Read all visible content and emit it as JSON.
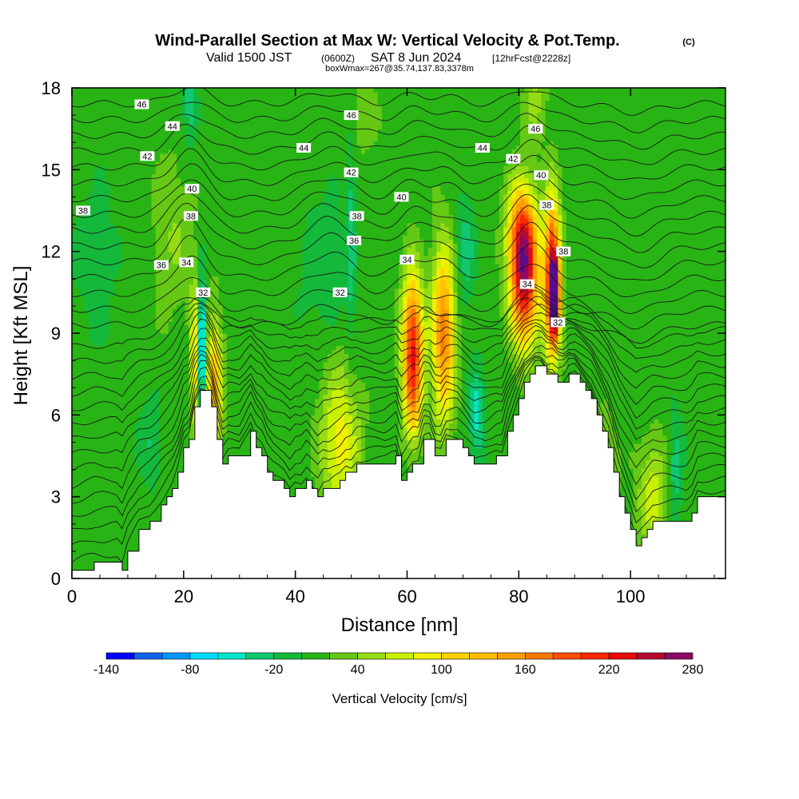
{
  "chart_data": {
    "type": "heatmap",
    "title": {
      "main": "Wind-Parallel Section at Max W: Vertical Velocity & Pot.Temp.",
      "copyright": "(C)",
      "valid_prefix": "Valid 1500 JST",
      "valid_utc": "(0600Z)",
      "valid_date": "SAT 8 Jun 2024",
      "forecast": "[12hrFcst@2228z]",
      "box": "boxWmax=267@35.74,137.83,3378m"
    },
    "xlabel": "Distance [nm]",
    "ylabel": "Height [Kft MSL]",
    "xlim": [
      0,
      117
    ],
    "ylim": [
      0,
      18
    ],
    "x_ticks": [
      "0",
      "20",
      "40",
      "60",
      "80",
      "100"
    ],
    "x_tick_values": [
      0,
      20,
      40,
      60,
      80,
      100
    ],
    "y_ticks": [
      "0",
      "3",
      "6",
      "9",
      "12",
      "15",
      "18"
    ],
    "y_tick_values": [
      0,
      3,
      6,
      9,
      12,
      15,
      18
    ],
    "colorbar": {
      "title": "Vertical Velocity [cm/s]",
      "levels": [
        -140,
        -120,
        -100,
        -80,
        -60,
        -40,
        -20,
        0,
        20,
        40,
        60,
        80,
        100,
        120,
        140,
        160,
        180,
        200,
        220,
        240,
        260,
        280
      ],
      "tick_labels": [
        "-140",
        "-80",
        "-20",
        "40",
        "100",
        "160",
        "220",
        "280"
      ],
      "tick_values": [
        -140,
        -80,
        -20,
        40,
        100,
        160,
        220,
        280
      ],
      "colors": [
        "#0000ff",
        "#1464f0",
        "#0096ff",
        "#00dcff",
        "#00e6c8",
        "#10c873",
        "#14b93c",
        "#28b414",
        "#64c814",
        "#96dc14",
        "#c8f000",
        "#f0f000",
        "#ffd200",
        "#ffbe00",
        "#ffa000",
        "#ff7800",
        "#ff5000",
        "#ff2800",
        "#e60a0a",
        "#b40a32",
        "#8c0a64",
        "#5a0a8c"
      ]
    },
    "background_w": 10,
    "updrafts": [
      {
        "x": 22,
        "y": 8.0,
        "sx": 0.6,
        "sy": 2.0,
        "w": 95
      },
      {
        "x": 25.5,
        "y": 7.0,
        "sx": 1.0,
        "sy": 1.8,
        "w": 120
      },
      {
        "x": 18,
        "y": 12.5,
        "sx": 2.5,
        "sy": 2.2,
        "w": 30
      },
      {
        "x": 48,
        "y": 5.0,
        "sx": 2.5,
        "sy": 2.0,
        "w": 80
      },
      {
        "x": 61,
        "y": 8.8,
        "sx": 1.3,
        "sy": 1.7,
        "w": 195
      },
      {
        "x": 61,
        "y": 6.5,
        "sx": 1.2,
        "sy": 1.2,
        "w": 80
      },
      {
        "x": 66.5,
        "y": 9.0,
        "sx": 1.4,
        "sy": 2.2,
        "w": 160
      },
      {
        "x": 81,
        "y": 10.8,
        "sx": 1.7,
        "sy": 1.6,
        "w": 215
      },
      {
        "x": 80.5,
        "y": 12.8,
        "sx": 1.8,
        "sy": 1.3,
        "w": 140
      },
      {
        "x": 86,
        "y": 11.0,
        "sx": 1.0,
        "sy": 2.0,
        "w": 245
      },
      {
        "x": 86.5,
        "y": 10.3,
        "sx": 0.5,
        "sy": 0.8,
        "w": 270
      },
      {
        "x": 104,
        "y": 3.0,
        "sx": 2.0,
        "sy": 1.5,
        "w": 60
      },
      {
        "x": 95,
        "y": 4.0,
        "sx": 1.5,
        "sy": 1.2,
        "w": 70
      },
      {
        "x": 52,
        "y": 17.0,
        "sx": 2.0,
        "sy": 1.0,
        "w": 25
      },
      {
        "x": 83,
        "y": 17.5,
        "sx": 1.5,
        "sy": 1.0,
        "w": 35
      }
    ],
    "downdrafts": [
      {
        "x": 23.2,
        "y": 8.5,
        "sx": 0.5,
        "sy": 1.8,
        "w": -120
      },
      {
        "x": 72.5,
        "y": 6.0,
        "sx": 1.0,
        "sy": 1.2,
        "w": -60
      },
      {
        "x": 70.5,
        "y": 12.0,
        "sx": 1.2,
        "sy": 1.5,
        "w": -40
      },
      {
        "x": 21,
        "y": 17.5,
        "sx": 1.0,
        "sy": 1.2,
        "w": -40
      },
      {
        "x": 50,
        "y": 12.5,
        "sx": 0.6,
        "sy": 3.0,
        "w": -40
      },
      {
        "x": 108,
        "y": 4.0,
        "sx": 1.0,
        "sy": 1.5,
        "w": -45
      },
      {
        "x": 14,
        "y": 5.0,
        "sx": 1.5,
        "sy": 1.2,
        "w": -30
      },
      {
        "x": 45,
        "y": 11.5,
        "sx": 3.0,
        "sy": 2.0,
        "w": -25
      },
      {
        "x": 4,
        "y": 11.5,
        "sx": 3.0,
        "sy": 2.5,
        "w": -20
      }
    ],
    "terrain": {
      "x": [
        0,
        4,
        8,
        9,
        10,
        12,
        14,
        16,
        17,
        18,
        19,
        20,
        21,
        22,
        23,
        24,
        25,
        26,
        27,
        28,
        30,
        32,
        33,
        34,
        35,
        36,
        38,
        39,
        40,
        41,
        42,
        43,
        44,
        45,
        46,
        48,
        49,
        50,
        51,
        52,
        54,
        56,
        58,
        59,
        60,
        61,
        62,
        63,
        64,
        65,
        66,
        67,
        68,
        69,
        70,
        71,
        72,
        73,
        74,
        76,
        77,
        78,
        79,
        80,
        81,
        82,
        83,
        84,
        85,
        86,
        87,
        88,
        89,
        90,
        91,
        92,
        93,
        94,
        95,
        96,
        97,
        98,
        99,
        100,
        101,
        102,
        103,
        104,
        106,
        108,
        110,
        111,
        112,
        114,
        116,
        117
      ],
      "y": [
        0.3,
        0.6,
        0.6,
        0.3,
        1.0,
        1.8,
        2.1,
        2.7,
        3.0,
        3.3,
        3.9,
        4.8,
        5.1,
        6.3,
        6.9,
        6.9,
        6.3,
        5.1,
        4.2,
        4.5,
        4.5,
        5.4,
        4.8,
        4.5,
        3.9,
        3.6,
        3.3,
        3.0,
        3.3,
        3.3,
        3.6,
        3.3,
        3.0,
        3.3,
        3.3,
        3.6,
        3.9,
        3.9,
        4.2,
        4.2,
        4.2,
        4.2,
        4.5,
        3.6,
        3.9,
        4.2,
        4.2,
        5.1,
        5.1,
        4.5,
        4.5,
        5.1,
        5.1,
        5.1,
        4.8,
        4.5,
        4.2,
        4.2,
        4.2,
        4.5,
        4.5,
        5.4,
        6.0,
        6.6,
        7.2,
        7.5,
        7.8,
        7.8,
        7.5,
        7.5,
        7.2,
        7.2,
        7.5,
        7.5,
        7.2,
        6.9,
        6.6,
        6.0,
        5.4,
        4.8,
        3.9,
        3.0,
        2.4,
        1.8,
        1.2,
        1.5,
        1.8,
        2.1,
        2.1,
        2.1,
        2.1,
        2.4,
        3.0,
        3.0,
        3.0,
        3.0
      ]
    },
    "potential_temperature_contours": {
      "label_values": [
        "46",
        "44",
        "42",
        "40",
        "38",
        "38",
        "36",
        "34",
        "32",
        "46",
        "44",
        "42",
        "40",
        "38",
        "36",
        "34",
        "32",
        "44",
        "42",
        "46",
        "40",
        "38",
        "38",
        "34",
        "32"
      ],
      "labels": [
        {
          "text": "46",
          "x": 12.5,
          "y": 17.4
        },
        {
          "text": "44",
          "x": 18,
          "y": 16.6
        },
        {
          "text": "42",
          "x": 13.5,
          "y": 15.5
        },
        {
          "text": "40",
          "x": 21.5,
          "y": 14.3
        },
        {
          "text": "38",
          "x": 21.3,
          "y": 13.3
        },
        {
          "text": "38",
          "x": 2,
          "y": 13.5
        },
        {
          "text": "36",
          "x": 16,
          "y": 11.5
        },
        {
          "text": "34",
          "x": 20.5,
          "y": 11.6
        },
        {
          "text": "32",
          "x": 23.5,
          "y": 10.5
        },
        {
          "text": "46",
          "x": 50,
          "y": 17.0
        },
        {
          "text": "44",
          "x": 41.5,
          "y": 15.8
        },
        {
          "text": "42",
          "x": 50,
          "y": 14.9
        },
        {
          "text": "40",
          "x": 59,
          "y": 14.0
        },
        {
          "text": "38",
          "x": 51,
          "y": 13.3
        },
        {
          "text": "36",
          "x": 50.5,
          "y": 12.4
        },
        {
          "text": "34",
          "x": 60,
          "y": 11.7
        },
        {
          "text": "32",
          "x": 48,
          "y": 10.5
        },
        {
          "text": "44",
          "x": 73.5,
          "y": 15.8
        },
        {
          "text": "42",
          "x": 79,
          "y": 15.4
        },
        {
          "text": "46",
          "x": 83,
          "y": 16.5
        },
        {
          "text": "40",
          "x": 84,
          "y": 14.8
        },
        {
          "text": "38",
          "x": 85,
          "y": 13.7
        },
        {
          "text": "38",
          "x": 88,
          "y": 12.0
        },
        {
          "text": "34",
          "x": 81.5,
          "y": 10.8
        },
        {
          "text": "32",
          "x": 87,
          "y": 9.4
        }
      ]
    }
  }
}
